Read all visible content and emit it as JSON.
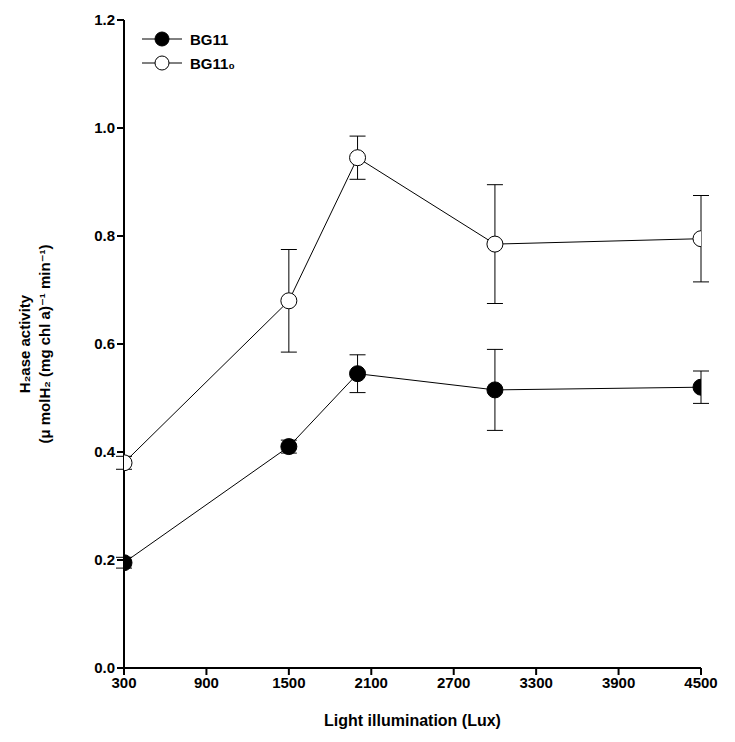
{
  "chart_data": {
    "type": "line",
    "x_label": "Light illumination (Lux)",
    "y_label": [
      "H₂ase activity",
      "(μ molH₂ (mg chl a)⁻¹ min⁻¹)"
    ],
    "x": [
      300,
      1500,
      2000,
      3000,
      4500
    ],
    "series": [
      {
        "name": "BG11",
        "color": "#000000",
        "marker": "filled circle",
        "values": [
          0.195,
          0.41,
          0.545,
          0.515,
          0.52
        ],
        "errors": [
          0.01,
          0.012,
          0.035,
          0.075,
          0.03
        ]
      },
      {
        "name": "BG11₀",
        "color": "#000000",
        "marker": "open circle",
        "values": [
          0.38,
          0.68,
          0.945,
          0.785,
          0.795
        ],
        "errors": [
          0.012,
          0.095,
          0.04,
          0.11,
          0.08
        ]
      }
    ],
    "xlim": [
      300,
      4500
    ],
    "xticks": [
      300,
      900,
      1500,
      2100,
      2700,
      3300,
      3900,
      4500
    ],
    "ylim": [
      0,
      1.2
    ],
    "yticks": [
      {
        "value": 0,
        "label": "0.0"
      },
      0.2,
      0.4,
      0.6,
      0.8,
      {
        "value": 1,
        "label": "1.0"
      },
      1.2
    ],
    "legend": "upper left",
    "grid": false
  }
}
